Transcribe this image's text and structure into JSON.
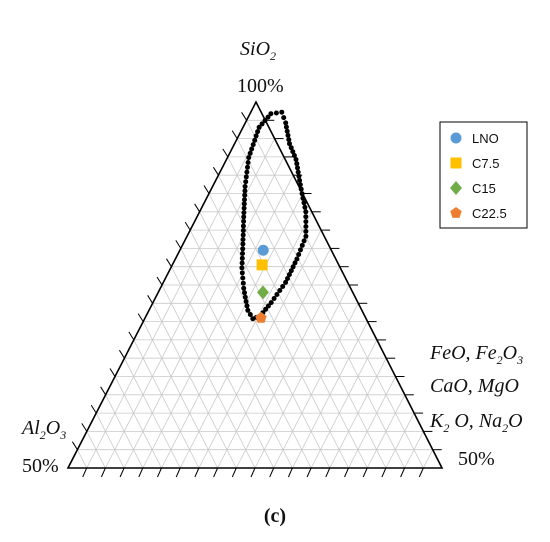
{
  "chart_data": {
    "type": "scatter",
    "subtype": "ternary",
    "apex_top": {
      "formula": [
        [
          "Si",
          "n"
        ],
        [
          "O",
          "n"
        ],
        [
          "2",
          "sub"
        ]
      ],
      "percent": "100%"
    },
    "apex_left": {
      "formula": [
        [
          "Al",
          "n"
        ],
        [
          "2",
          "sub"
        ],
        [
          "O",
          "n"
        ],
        [
          "3",
          "sub"
        ]
      ],
      "percent": "50%"
    },
    "apex_right": {
      "lines": [
        [
          [
            "FeO, Fe",
            "n"
          ],
          [
            "2",
            "sub"
          ],
          [
            "O",
            "n"
          ],
          [
            "3",
            "sub"
          ]
        ],
        [
          [
            "CaO, MgO",
            "n"
          ]
        ],
        [
          [
            "K",
            "n"
          ],
          [
            "2",
            "sub"
          ],
          [
            " O, Na",
            "n"
          ],
          [
            "2",
            "sub"
          ],
          [
            "O",
            "n"
          ]
        ]
      ],
      "percent": "50%"
    },
    "panel_label": "(c)",
    "grid": true,
    "grid_divisions": 20,
    "legend_position": "top-right",
    "series": [
      {
        "name": "LNO",
        "marker": "circle",
        "color": "#5b9bd5",
        "points": [
          {
            "top": 0.595,
            "right": 0.223
          }
        ]
      },
      {
        "name": "C7.5",
        "marker": "square",
        "color": "#ffc000",
        "points": [
          {
            "top": 0.555,
            "right": 0.24
          }
        ]
      },
      {
        "name": "C15",
        "marker": "diamond",
        "color": "#70ad47",
        "points": [
          {
            "top": 0.48,
            "right": 0.28
          }
        ]
      },
      {
        "name": "C22.5",
        "marker": "pentagon",
        "color": "#ed7d31",
        "points": [
          {
            "top": 0.41,
            "right": 0.31
          }
        ]
      }
    ],
    "region": {
      "style": "dotted-outline",
      "color": "#000000",
      "points": [
        {
          "top": 0.972,
          "right": 0.083
        },
        {
          "top": 0.943,
          "right": 0.108
        },
        {
          "top": 0.886,
          "right": 0.147
        },
        {
          "top": 0.843,
          "right": 0.186
        },
        {
          "top": 0.774,
          "right": 0.232
        },
        {
          "top": 0.7,
          "right": 0.284
        },
        {
          "top": 0.633,
          "right": 0.318
        },
        {
          "top": 0.571,
          "right": 0.325
        },
        {
          "top": 0.507,
          "right": 0.327
        },
        {
          "top": 0.452,
          "right": 0.316
        },
        {
          "top": 0.415,
          "right": 0.305
        },
        {
          "top": 0.408,
          "right": 0.289
        },
        {
          "top": 0.431,
          "right": 0.264
        },
        {
          "top": 0.491,
          "right": 0.223
        },
        {
          "top": 0.547,
          "right": 0.19
        },
        {
          "top": 0.612,
          "right": 0.16
        },
        {
          "top": 0.686,
          "right": 0.125
        },
        {
          "top": 0.769,
          "right": 0.087
        },
        {
          "top": 0.848,
          "right": 0.057
        },
        {
          "top": 0.931,
          "right": 0.043
        },
        {
          "top": 0.968,
          "right": 0.056
        }
      ]
    }
  }
}
